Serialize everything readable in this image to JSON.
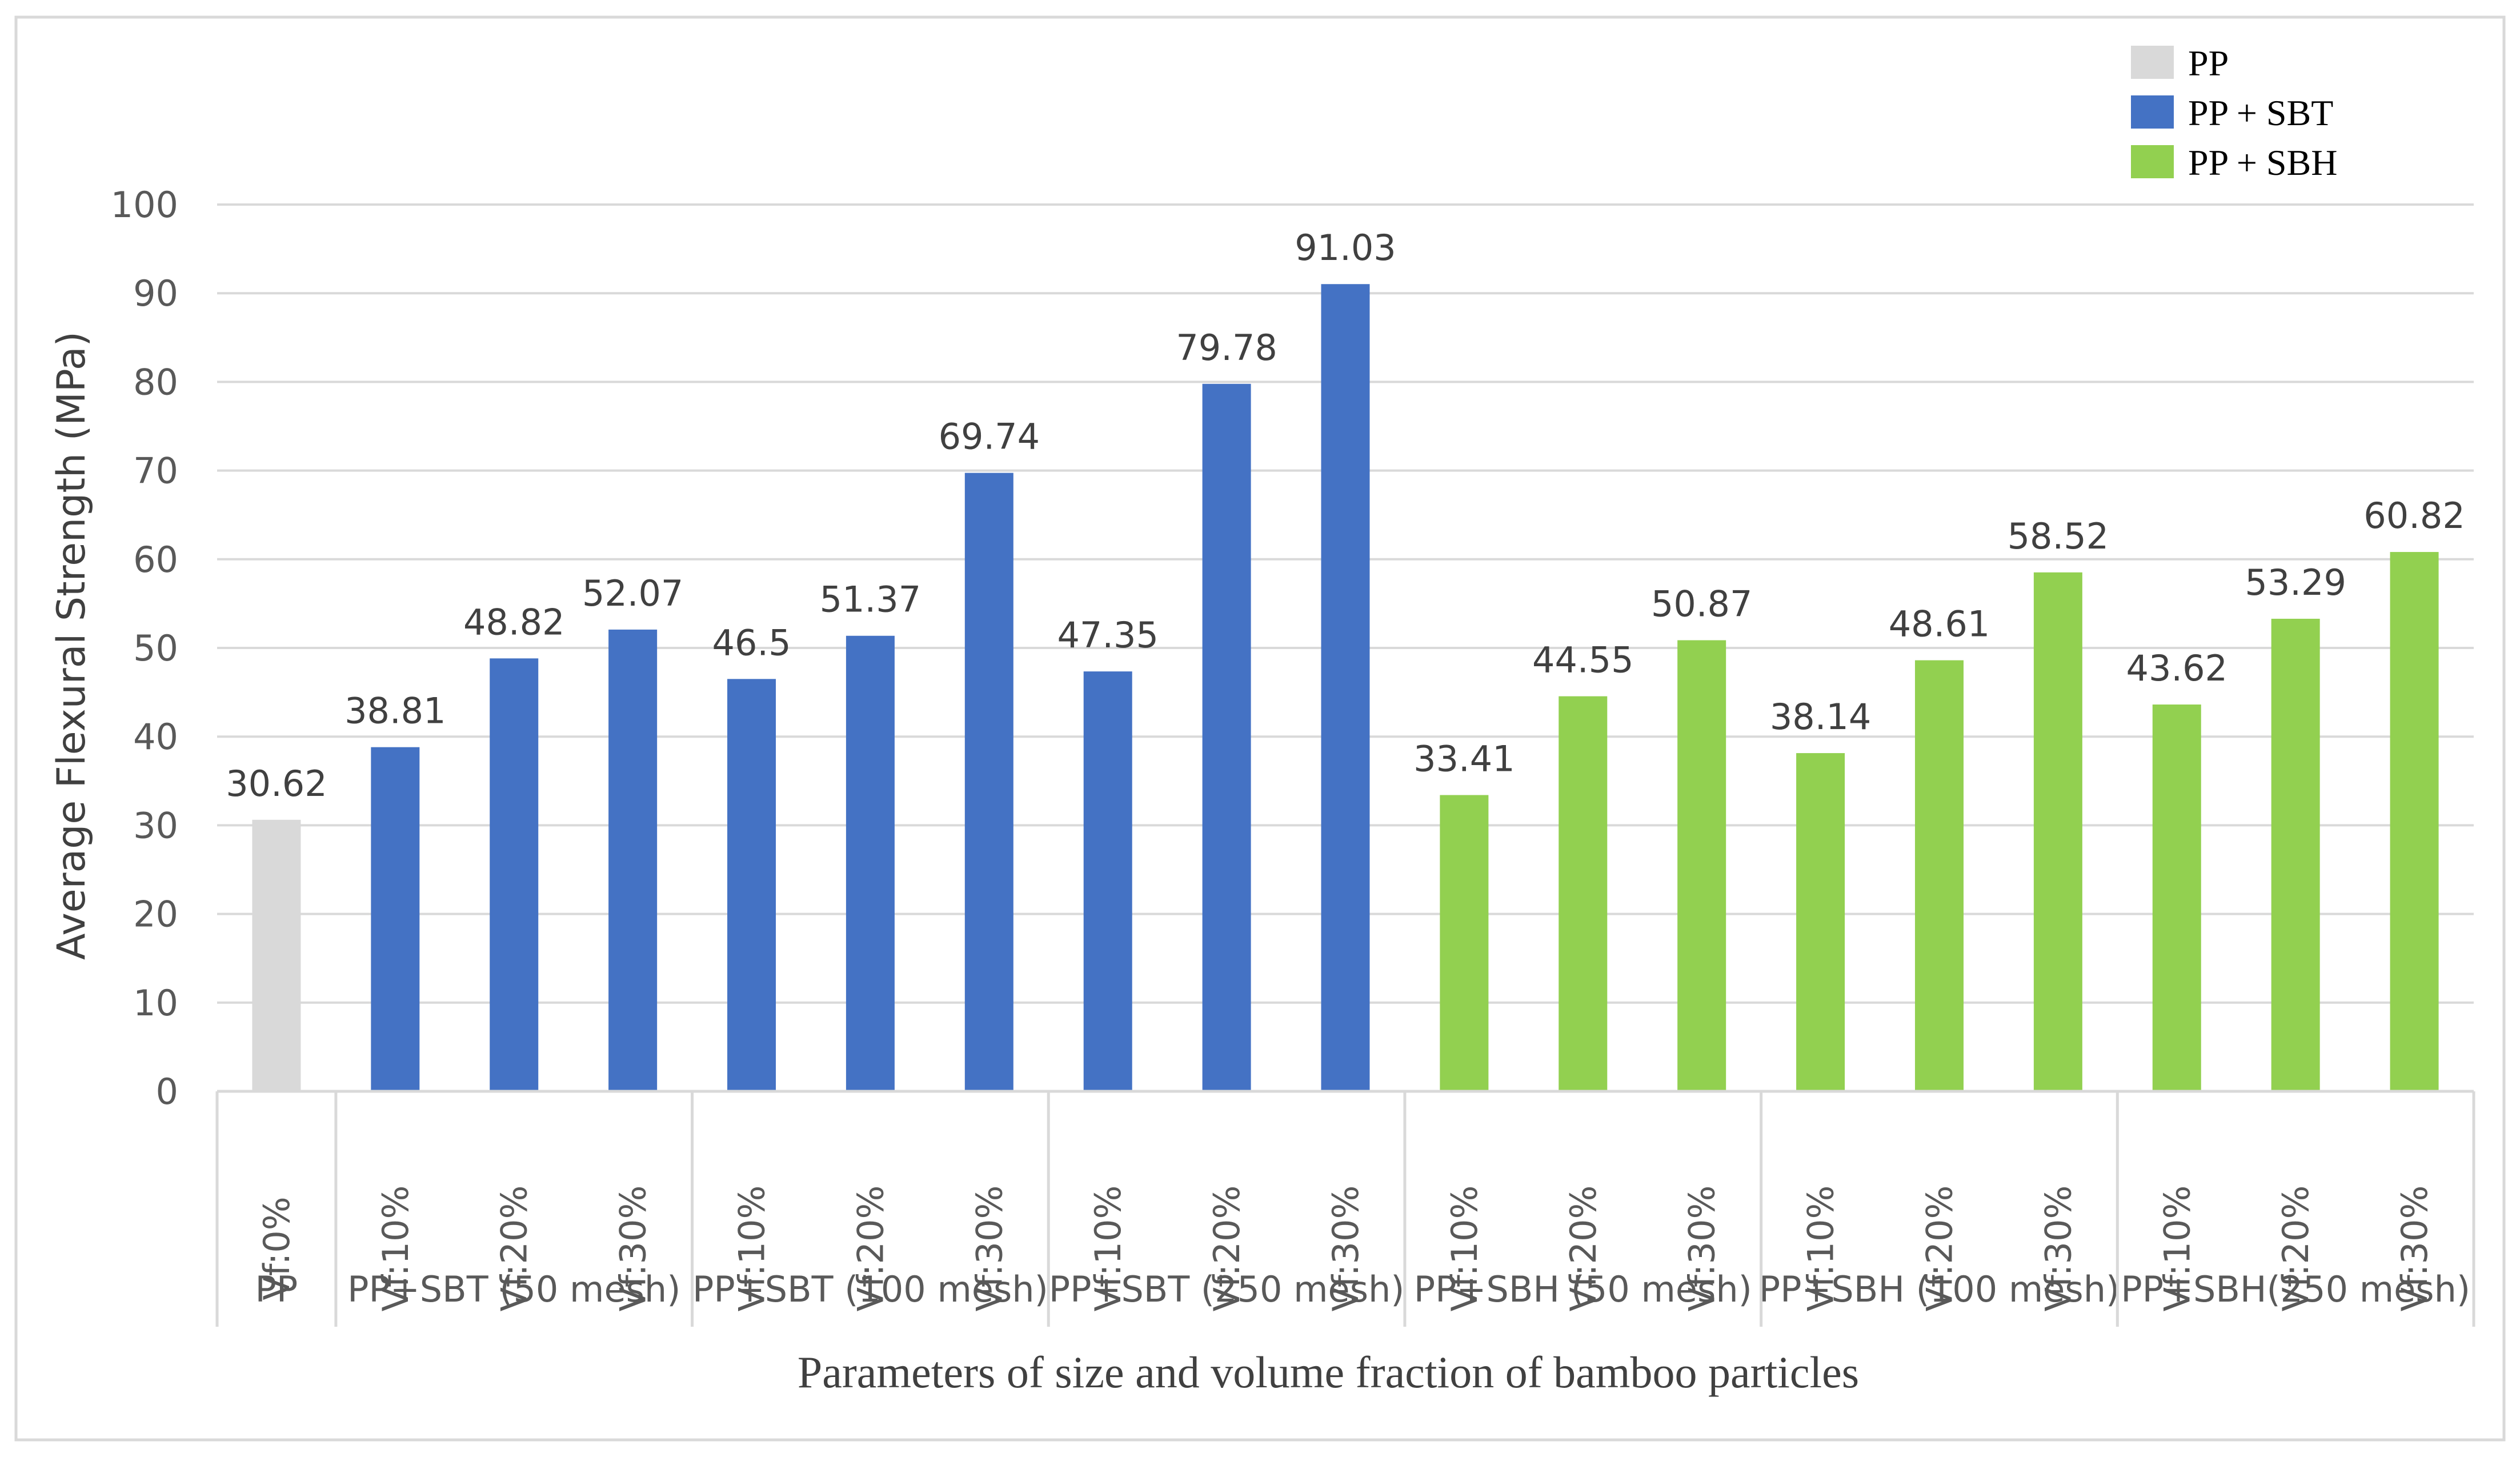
{
  "chart_data": {
    "type": "bar",
    "title": "",
    "xlabel": "Parameters of size and volume fraction of bamboo particles",
    "ylabel": "Average Flexural Strength (MPa)",
    "ylim": [
      0,
      100
    ],
    "yticks": [
      0,
      10,
      20,
      30,
      40,
      50,
      60,
      70,
      80,
      90,
      100
    ],
    "grid": true,
    "legend_position": "top-right",
    "legend": [
      {
        "label": "PP",
        "color": "#d9d9d9"
      },
      {
        "label": "PP + SBT",
        "color": "#4472c4"
      },
      {
        "label": "PP + SBH",
        "color": "#92d050"
      }
    ],
    "groups": [
      {
        "label": "PP",
        "series": "PP",
        "categories": [
          "Vf:0%"
        ],
        "values": [
          30.62
        ],
        "value_labels": [
          "30.62"
        ]
      },
      {
        "label": "PP+SBT (50 mesh)",
        "series": "PP + SBT",
        "categories": [
          "Vf:10%",
          "Vf:20%",
          "Vf:30%"
        ],
        "values": [
          38.81,
          48.82,
          52.07
        ],
        "value_labels": [
          "38.81",
          "48.82",
          "52.07"
        ]
      },
      {
        "label": "PP+SBT (100 mesh)",
        "series": "PP + SBT",
        "categories": [
          "Vf:10%",
          "Vf:20%",
          "Vf:30%"
        ],
        "values": [
          46.5,
          51.37,
          69.74
        ],
        "value_labels": [
          "46.5",
          "51.37",
          "69.74"
        ]
      },
      {
        "label": "PP+SBT (250 mesh)",
        "series": "PP + SBT",
        "categories": [
          "Vf:10%",
          "Vf:20%",
          "Vf:30%"
        ],
        "values": [
          47.35,
          79.78,
          91.03
        ],
        "value_labels": [
          "47.35",
          "79.78",
          "91.03"
        ]
      },
      {
        "label": "PP+SBH (50 mesh)",
        "series": "PP + SBH",
        "categories": [
          "Vf:10%",
          "Vf:20%",
          "Vf:30%"
        ],
        "values": [
          33.41,
          44.55,
          50.87
        ],
        "value_labels": [
          "33.41",
          "44.55",
          "50.87"
        ]
      },
      {
        "label": "PP+SBH (100 mesh)",
        "series": "PP + SBH",
        "categories": [
          "Vf:10%",
          "Vf:20%",
          "Vf:30%"
        ],
        "values": [
          38.14,
          48.61,
          58.52
        ],
        "value_labels": [
          "38.14",
          "48.61",
          "58.52"
        ]
      },
      {
        "label": "PP+SBH(250 mesh)",
        "series": "PP + SBH",
        "categories": [
          "Vf:10%",
          "Vf:20%",
          "Vf:30%"
        ],
        "values": [
          43.62,
          53.29,
          60.82
        ],
        "value_labels": [
          "43.62",
          "53.29",
          "60.82"
        ]
      }
    ]
  }
}
